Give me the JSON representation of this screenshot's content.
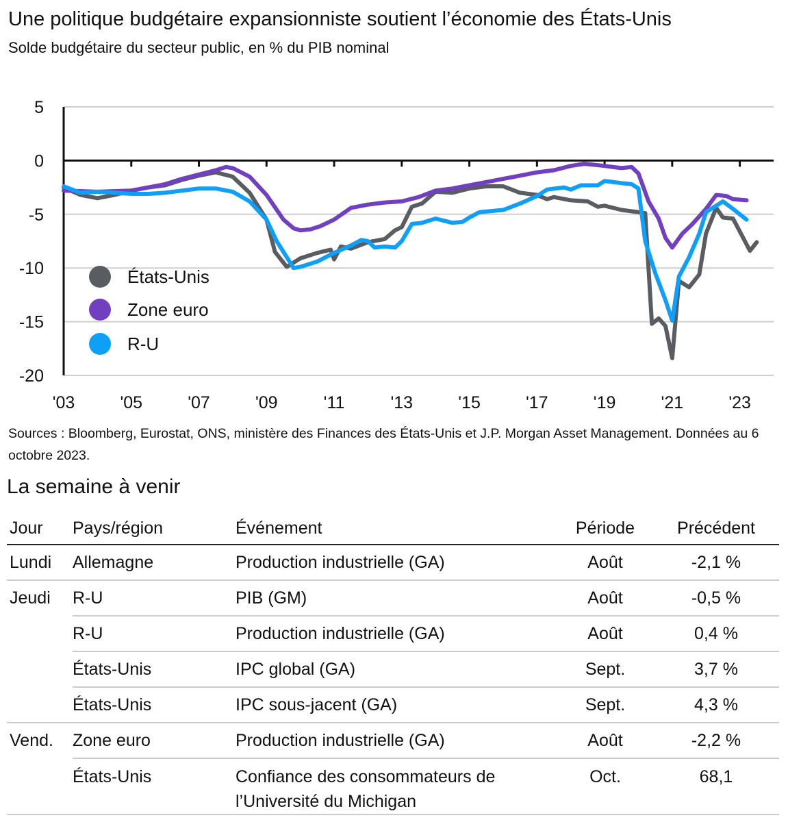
{
  "header": {
    "title": "Une politique budgétaire expansionniste soutient l’économie des États-Unis",
    "subtitle": "Solde budgétaire du secteur public, en % du PIB nominal"
  },
  "chart_data": {
    "type": "line",
    "title": "Une politique budgétaire expansionniste soutient l’économie des États-Unis",
    "subtitle": "Solde budgétaire du secteur public, en % du PIB nominal",
    "xlim": [
      2003,
      2024
    ],
    "ylim": [
      -20,
      5
    ],
    "yticks": [
      5,
      0,
      -5,
      -10,
      -15,
      -20
    ],
    "ytick_labels": [
      "5",
      "0",
      "-5",
      "-10",
      "-15",
      "-20"
    ],
    "xticks": [
      2003,
      2005,
      2007,
      2009,
      2011,
      2013,
      2015,
      2017,
      2019,
      2021,
      2023
    ],
    "xtick_labels": [
      "'03",
      "'05",
      "'07",
      "'09",
      "'11",
      "'13",
      "'15",
      "'17",
      "'19",
      "'21",
      "'23"
    ],
    "grid": "horizontal",
    "legend_placement": "bottom-left",
    "series": [
      {
        "name": "États-Unis",
        "color": "#595c61",
        "points": [
          [
            2003,
            -2.5
          ],
          [
            2003.5,
            -3.2
          ],
          [
            2004,
            -3.5
          ],
          [
            2004.5,
            -3.2
          ],
          [
            2005,
            -2.8
          ],
          [
            2005.5,
            -2.5
          ],
          [
            2006,
            -2.3
          ],
          [
            2006.5,
            -1.8
          ],
          [
            2007,
            -1.4
          ],
          [
            2007.5,
            -1.1
          ],
          [
            2008,
            -1.5
          ],
          [
            2008.5,
            -3
          ],
          [
            2009,
            -5.5
          ],
          [
            2009.25,
            -8.5
          ],
          [
            2009.6,
            -9.9
          ],
          [
            2010,
            -9.1
          ],
          [
            2010.5,
            -8.6
          ],
          [
            2010.9,
            -8.3
          ],
          [
            2011,
            -9.2
          ],
          [
            2011.2,
            -8
          ],
          [
            2011.5,
            -8.2
          ],
          [
            2012,
            -7.6
          ],
          [
            2012.5,
            -7.3
          ],
          [
            2012.8,
            -6.5
          ],
          [
            2013,
            -6.2
          ],
          [
            2013.3,
            -4.3
          ],
          [
            2013.6,
            -4
          ],
          [
            2014,
            -2.9
          ],
          [
            2014.5,
            -3
          ],
          [
            2015,
            -2.6
          ],
          [
            2015.5,
            -2.4
          ],
          [
            2016,
            -2.4
          ],
          [
            2016.5,
            -3
          ],
          [
            2017,
            -3.2
          ],
          [
            2017.3,
            -3.6
          ],
          [
            2017.5,
            -3.4
          ],
          [
            2018,
            -3.7
          ],
          [
            2018.5,
            -3.8
          ],
          [
            2018.8,
            -4.3
          ],
          [
            2019,
            -4.2
          ],
          [
            2019.5,
            -4.6
          ],
          [
            2020,
            -4.8
          ],
          [
            2020.2,
            -4.9
          ],
          [
            2020.4,
            -15.2
          ],
          [
            2020.6,
            -14.7
          ],
          [
            2020.8,
            -15.4
          ],
          [
            2021,
            -18.4
          ],
          [
            2021.2,
            -11.2
          ],
          [
            2021.5,
            -11.8
          ],
          [
            2021.8,
            -10.6
          ],
          [
            2022,
            -6.8
          ],
          [
            2022.3,
            -4.4
          ],
          [
            2022.5,
            -5.3
          ],
          [
            2022.8,
            -5.4
          ],
          [
            2023,
            -6.6
          ],
          [
            2023.3,
            -8.4
          ],
          [
            2023.5,
            -7.6
          ]
        ]
      },
      {
        "name": "Zone euro",
        "color": "#7040c0",
        "points": [
          [
            2003,
            -2.8
          ],
          [
            2004,
            -2.9
          ],
          [
            2005,
            -2.8
          ],
          [
            2006,
            -2.2
          ],
          [
            2006.5,
            -1.7
          ],
          [
            2007,
            -1.3
          ],
          [
            2007.5,
            -0.9
          ],
          [
            2007.8,
            -0.6
          ],
          [
            2008,
            -0.7
          ],
          [
            2008.5,
            -1.5
          ],
          [
            2009,
            -3.2
          ],
          [
            2009.5,
            -5.5
          ],
          [
            2009.8,
            -6.3
          ],
          [
            2010,
            -6.5
          ],
          [
            2010.3,
            -6.4
          ],
          [
            2010.6,
            -6.1
          ],
          [
            2011,
            -5.5
          ],
          [
            2011.5,
            -4.4
          ],
          [
            2012,
            -4.1
          ],
          [
            2012.5,
            -3.9
          ],
          [
            2013,
            -3.8
          ],
          [
            2013.5,
            -3.4
          ],
          [
            2014,
            -2.8
          ],
          [
            2014.5,
            -2.6
          ],
          [
            2015,
            -2.3
          ],
          [
            2015.5,
            -2
          ],
          [
            2016,
            -1.7
          ],
          [
            2016.5,
            -1.4
          ],
          [
            2017,
            -1.1
          ],
          [
            2017.5,
            -0.9
          ],
          [
            2018,
            -0.5
          ],
          [
            2018.4,
            -0.3
          ],
          [
            2019,
            -0.5
          ],
          [
            2019.5,
            -0.7
          ],
          [
            2019.8,
            -0.6
          ],
          [
            2020,
            -1.2
          ],
          [
            2020.3,
            -3.8
          ],
          [
            2020.6,
            -5.4
          ],
          [
            2020.8,
            -7.2
          ],
          [
            2021,
            -8.1
          ],
          [
            2021.3,
            -6.8
          ],
          [
            2021.6,
            -5.9
          ],
          [
            2022,
            -4.5
          ],
          [
            2022.3,
            -3.2
          ],
          [
            2022.6,
            -3.3
          ],
          [
            2022.8,
            -3.6
          ],
          [
            2023.2,
            -3.7
          ]
        ]
      },
      {
        "name": "R-U",
        "color": "#0ea0f8",
        "points": [
          [
            2003,
            -2.4
          ],
          [
            2003.5,
            -3
          ],
          [
            2004,
            -2.9
          ],
          [
            2004.5,
            -3
          ],
          [
            2005,
            -3.1
          ],
          [
            2005.5,
            -3.1
          ],
          [
            2006,
            -3
          ],
          [
            2006.5,
            -2.8
          ],
          [
            2007,
            -2.6
          ],
          [
            2007.5,
            -2.6
          ],
          [
            2008,
            -2.9
          ],
          [
            2008.5,
            -3.8
          ],
          [
            2009,
            -5.5
          ],
          [
            2009.3,
            -7.5
          ],
          [
            2009.8,
            -10
          ],
          [
            2010,
            -9.9
          ],
          [
            2010.5,
            -9.4
          ],
          [
            2011,
            -8.6
          ],
          [
            2011.5,
            -7.9
          ],
          [
            2011.8,
            -7.4
          ],
          [
            2012,
            -7.5
          ],
          [
            2012.2,
            -8.1
          ],
          [
            2012.5,
            -8
          ],
          [
            2012.8,
            -8.1
          ],
          [
            2013,
            -7.5
          ],
          [
            2013.3,
            -5.9
          ],
          [
            2013.6,
            -5.8
          ],
          [
            2014,
            -5.4
          ],
          [
            2014.5,
            -5.8
          ],
          [
            2014.8,
            -5.7
          ],
          [
            2015,
            -5.3
          ],
          [
            2015.3,
            -4.8
          ],
          [
            2016,
            -4.6
          ],
          [
            2016.5,
            -4
          ],
          [
            2017,
            -3.3
          ],
          [
            2017.3,
            -2.7
          ],
          [
            2017.8,
            -2.5
          ],
          [
            2018,
            -2.7
          ],
          [
            2018.3,
            -2.3
          ],
          [
            2018.8,
            -2.3
          ],
          [
            2019,
            -1.9
          ],
          [
            2019.5,
            -2.1
          ],
          [
            2019.8,
            -2.2
          ],
          [
            2020,
            -2.6
          ],
          [
            2020.2,
            -7.5
          ],
          [
            2020.5,
            -10.5
          ],
          [
            2020.8,
            -13
          ],
          [
            2021,
            -14.9
          ],
          [
            2021.2,
            -10.8
          ],
          [
            2021.5,
            -9
          ],
          [
            2021.8,
            -6.8
          ],
          [
            2022,
            -4.8
          ],
          [
            2022.3,
            -4.2
          ],
          [
            2022.5,
            -3.8
          ],
          [
            2022.8,
            -4.5
          ],
          [
            2023.2,
            -5.5
          ]
        ]
      }
    ]
  },
  "sources": "Sources : Bloomberg, Eurostat, ONS, ministère des Finances des États-Unis et J.P. Morgan Asset Management. Données au 6 octobre 2023.",
  "calendar": {
    "title": "La semaine à venir",
    "headers": [
      "Jour",
      "Pays/région",
      "Événement",
      "Période",
      "Précédent"
    ],
    "rows": [
      {
        "day": "Lundi",
        "country": "Allemagne",
        "event": "Production industrielle (GA)",
        "period": "Août",
        "previous": "-2,1 %"
      },
      {
        "day": "Jeudi",
        "country": "R-U",
        "event": "PIB (GM)",
        "period": "Août",
        "previous": "-0,5 %"
      },
      {
        "day": "",
        "country": "R-U",
        "event": "Production industrielle (GA)",
        "period": "Août",
        "previous": "0,4 %"
      },
      {
        "day": "",
        "country": "États-Unis",
        "event": "IPC global (GA)",
        "period": "Sept.",
        "previous": "3,7 %"
      },
      {
        "day": "",
        "country": "États-Unis",
        "event": "IPC sous-jacent (GA)",
        "period": "Sept.",
        "previous": "4,3 %"
      },
      {
        "day": "Vend.",
        "country": "Zone euro",
        "event": "Production industrielle (GA)",
        "period": "Août",
        "previous": "-2,2 %"
      },
      {
        "day": "",
        "country": "États-Unis",
        "event": "Confiance des consommateurs de l’Université du Michigan",
        "period": "Oct.",
        "previous": "68,1"
      }
    ]
  }
}
